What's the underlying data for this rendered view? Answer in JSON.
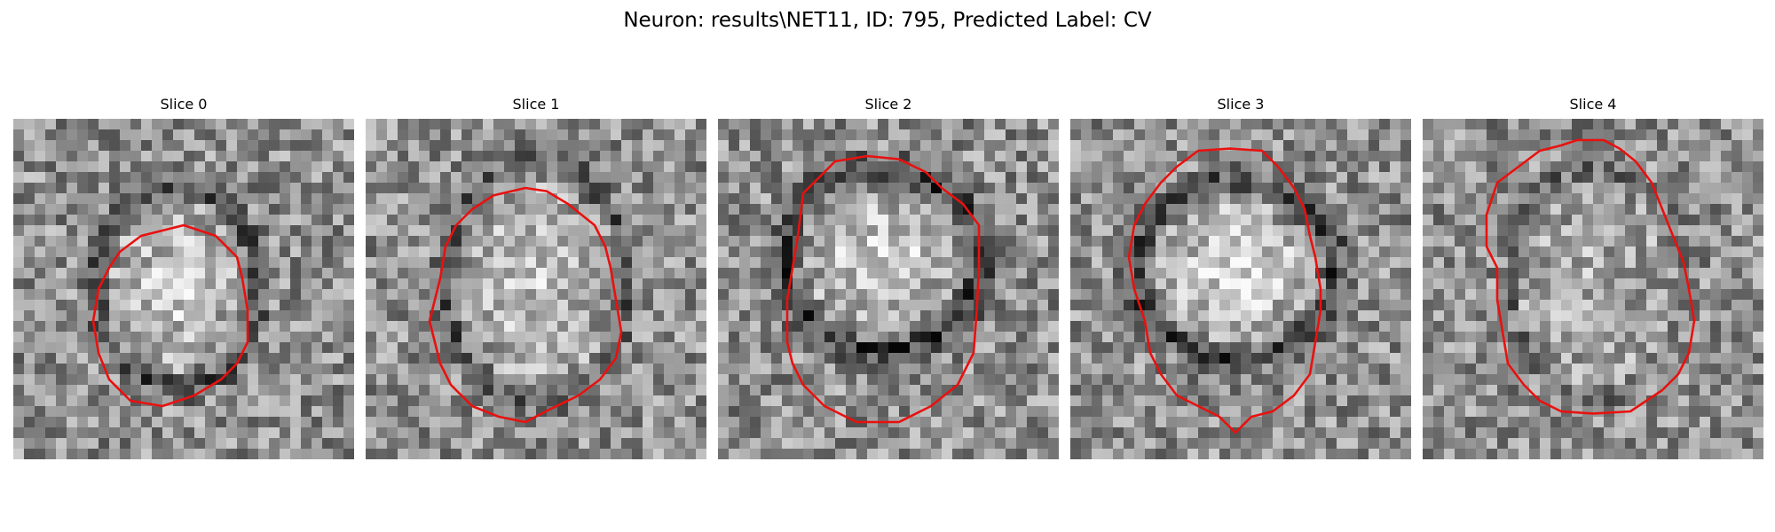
{
  "figure": {
    "title": "Neuron: results\\NET11, ID: 795, Predicted Label: CV"
  },
  "panels": [
    {
      "title": "Slice 0"
    },
    {
      "title": "Slice 1"
    },
    {
      "title": "Slice 2"
    },
    {
      "title": "Slice 3"
    },
    {
      "title": "Slice 4"
    }
  ],
  "colors": {
    "contour": "#e8110f"
  }
}
